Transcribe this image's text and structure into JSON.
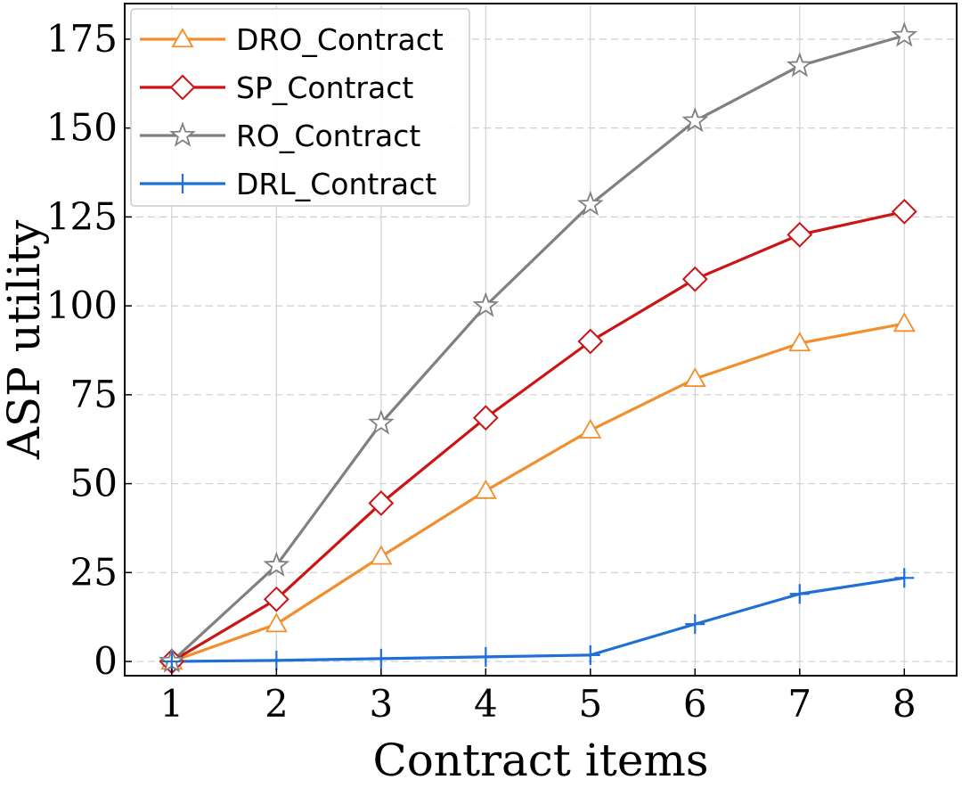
{
  "chart_data": {
    "type": "line",
    "xlabel": "Contract items",
    "ylabel": "ASP utility",
    "x": [
      1,
      2,
      3,
      4,
      5,
      6,
      7,
      8
    ],
    "xlim": [
      0.55,
      8.5
    ],
    "ylim": [
      -4,
      185
    ],
    "xticks": [
      1,
      2,
      3,
      4,
      5,
      6,
      7,
      8
    ],
    "yticks": [
      0,
      25,
      50,
      75,
      100,
      125,
      150,
      175
    ],
    "grid": {
      "vertical": "solid",
      "horizontal": "dashed"
    },
    "legend_position": "top-left",
    "series": [
      {
        "name": "DRO_Contract",
        "color": "#f28e2b",
        "marker": "triangle",
        "values": [
          0,
          10.5,
          29.5,
          48,
          65,
          79.5,
          89.5,
          95
        ]
      },
      {
        "name": "SP_Contract",
        "color": "#cc1414",
        "marker": "diamond",
        "values": [
          0,
          17.5,
          44.5,
          68.5,
          90,
          107.5,
          120,
          126.5
        ]
      },
      {
        "name": "RO_Contract",
        "color": "#808080",
        "marker": "star",
        "values": [
          0,
          27,
          67,
          100,
          128.5,
          152,
          167.5,
          176
        ]
      },
      {
        "name": "DRL_Contract",
        "color": "#1f6fd6",
        "marker": "plus",
        "values": [
          0,
          0.3,
          0.8,
          1.3,
          1.8,
          10.5,
          19,
          23.5
        ]
      }
    ]
  }
}
